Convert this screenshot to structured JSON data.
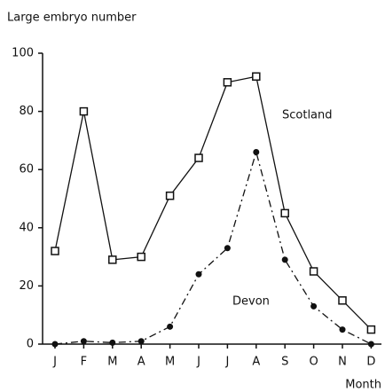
{
  "chart_data": {
    "type": "line",
    "y_label": "Large embryo number",
    "x_label": "Month",
    "categories": [
      "J",
      "F",
      "M",
      "A",
      "M",
      "J",
      "J",
      "A",
      "S",
      "O",
      "N",
      "D"
    ],
    "series": [
      {
        "name": "Scotland",
        "color": "#111111",
        "marker": "square",
        "values": [
          32,
          80,
          29,
          30,
          51,
          64,
          90,
          92,
          45,
          25,
          15,
          5
        ]
      },
      {
        "name": "Devon",
        "color": "#111111",
        "marker": "circle",
        "values": [
          0,
          1,
          0.5,
          1,
          6,
          24,
          33,
          66,
          29,
          13,
          5,
          0
        ]
      }
    ],
    "ylim": [
      0,
      100
    ],
    "yticks": [
      0,
      20,
      40,
      60,
      80,
      100
    ],
    "grid": false
  }
}
